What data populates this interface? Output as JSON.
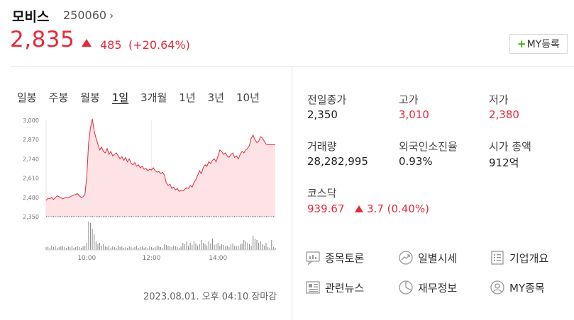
{
  "stock": {
    "name": "모비스",
    "code": "250060",
    "chevron": "›",
    "price": "2,835",
    "change": "485",
    "change_rate": "(+20.64%)"
  },
  "my_button": {
    "plus": "+",
    "label": "MY등록"
  },
  "tabs": [
    {
      "label": "일봉",
      "active": false
    },
    {
      "label": "주봉",
      "active": false
    },
    {
      "label": "월봉",
      "active": false
    },
    {
      "label": "1일",
      "active": true
    },
    {
      "label": "3개월",
      "active": false
    },
    {
      "label": "1년",
      "active": false
    },
    {
      "label": "3년",
      "active": false
    },
    {
      "label": "10년",
      "active": false
    }
  ],
  "chart_data": {
    "type": "area",
    "y_ticks": [
      "3,000",
      "2,870",
      "2,740",
      "2,610",
      "2,480",
      "2,350"
    ],
    "ylim": [
      2350,
      3000
    ],
    "x_ticks": [
      "10:00",
      "12:00",
      "14:00"
    ],
    "prev_close": 2350,
    "series": [
      {
        "values": [
          2460,
          2475,
          2470,
          2480,
          2465,
          2478,
          2490,
          2485,
          2480,
          2470,
          2475,
          2480,
          2478,
          2485,
          2490,
          2495,
          2500,
          2505,
          2490,
          2480,
          2485,
          2500,
          2620,
          2850,
          2950,
          3010,
          2930,
          2880,
          2840,
          2800,
          2820,
          2790,
          2780,
          2810,
          2770,
          2790,
          2760,
          2770,
          2780,
          2760,
          2740,
          2755,
          2730,
          2750,
          2720,
          2740,
          2710,
          2700,
          2715,
          2690,
          2700,
          2680,
          2690,
          2670,
          2675,
          2660,
          2670,
          2665,
          2680,
          2660,
          2650,
          2655,
          2640,
          2650,
          2630,
          2580,
          2560,
          2570,
          2540,
          2550,
          2530,
          2540,
          2520,
          2530,
          2525,
          2535,
          2545,
          2540,
          2560,
          2550,
          2580,
          2600,
          2630,
          2660,
          2640,
          2680,
          2700,
          2690,
          2720,
          2710,
          2730,
          2740,
          2720,
          2760,
          2800,
          2790,
          2770,
          2780,
          2760,
          2750,
          2770,
          2780,
          2750,
          2760,
          2740,
          2770,
          2790,
          2780,
          2800,
          2810,
          2830,
          2880,
          2900,
          2870,
          2850,
          2860,
          2890,
          2880,
          2860,
          2840,
          2835,
          2835,
          2835,
          2835,
          2835
        ],
        "volumes": [
          4,
          5,
          3,
          6,
          4,
          5,
          3,
          4,
          5,
          6,
          4,
          3,
          5,
          4,
          6,
          3,
          4,
          5,
          4,
          3,
          5,
          6,
          10,
          40,
          38,
          30,
          22,
          12,
          8,
          10,
          6,
          8,
          5,
          4,
          6,
          3,
          5,
          4,
          3,
          6,
          4,
          5,
          3,
          4,
          3,
          5,
          4,
          3,
          4,
          6,
          3,
          4,
          5,
          3,
          4,
          3,
          5,
          4,
          3,
          4,
          6,
          5,
          4,
          3,
          8,
          7,
          6,
          5,
          4,
          6,
          5,
          4,
          3,
          5,
          10,
          8,
          12,
          6,
          10,
          7,
          12,
          9,
          6,
          8,
          14,
          10,
          8,
          6,
          12,
          9,
          16,
          7,
          8,
          10,
          6,
          8,
          7,
          5,
          6,
          4,
          8,
          9,
          6,
          5,
          6,
          8,
          9,
          14,
          12,
          10,
          8,
          6,
          20,
          16,
          14,
          10,
          12,
          8,
          6,
          10,
          4,
          3,
          14,
          4,
          3
        ]
      }
    ]
  },
  "timestamp": "2023.08.01. 오후 04:10 장마감",
  "info": {
    "prev_close_label": "전일종가",
    "prev_close": "2,350",
    "high_label": "고가",
    "high": "3,010",
    "low_label": "저가",
    "low": "2,380",
    "volume_label": "거래량",
    "volume": "28,282,995",
    "foreign_label": "외국인소진율",
    "foreign": "0.93%",
    "mcap_label": "시가 총액",
    "mcap": "912억",
    "index_label": "코스닥",
    "index_value": "939.67",
    "index_change": "3.7 (0.40%)"
  },
  "links": [
    {
      "label": "종목토론",
      "icon": "chat-chart-icon"
    },
    {
      "label": "일별시세",
      "icon": "trend-circle-icon"
    },
    {
      "label": "기업개요",
      "icon": "document-list-icon"
    },
    {
      "label": "관련뉴스",
      "icon": "news-icon"
    },
    {
      "label": "재무정보",
      "icon": "pie-chart-icon"
    },
    {
      "label": "MY종목",
      "icon": "user-circle-icon"
    }
  ],
  "colors": {
    "up": "#e6293a",
    "area_fill": "#fde3e5",
    "line": "#e6293a",
    "volume": "#888888"
  }
}
